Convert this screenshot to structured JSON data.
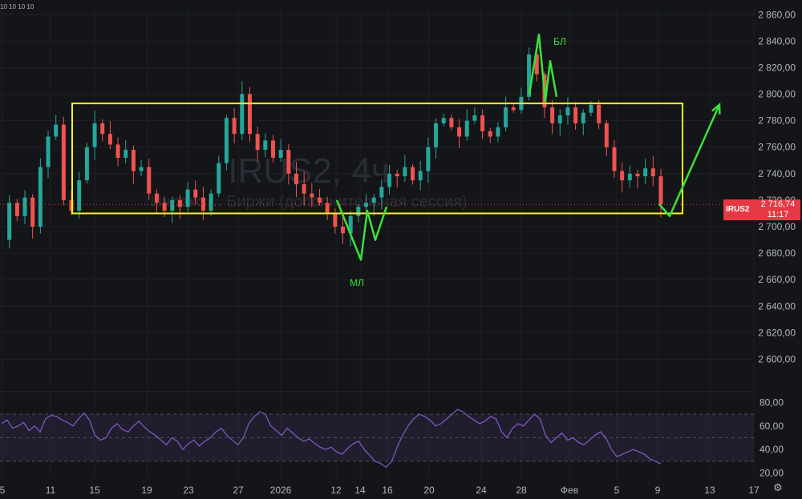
{
  "top_indicator_text": "10 10 10 10",
  "watermark": {
    "symbol": "IRUS2, 4ч",
    "description": "Индекс ... Биржи (дополнительная сессия)"
  },
  "price_label": {
    "symbol": "IRUS2",
    "price": "2 716,74",
    "countdown": "11:17",
    "color": "#e53945"
  },
  "annotations": {
    "top": "БЛ",
    "bottom": "МЛ"
  },
  "colors": {
    "background": "#141518",
    "up": "#26a69a",
    "down": "#ef5350",
    "box": "#f4f41c",
    "annotation": "#39e23a",
    "rsi": "#7e57c2",
    "last_price_line": "#e53945"
  },
  "chart_data": [
    {
      "type": "candlestick",
      "symbol": "IRUS2",
      "timeframe": "4ч",
      "y_axis_ticks": [
        "2 860,00",
        "2 840,00",
        "2 820,00",
        "2 800,00",
        "2 780,00",
        "2 760,00",
        "2 740,00",
        "2 720,00",
        "2 700,00",
        "2 680,00",
        "2 660,00",
        "2 640,00",
        "2 620,00",
        "2 600,00"
      ],
      "ylim": [
        2590,
        2865
      ],
      "x_axis_ticks": [
        "5",
        "11",
        "15",
        "19",
        "23",
        "27",
        "2026",
        "12",
        "14",
        "16",
        "20",
        "24",
        "28",
        "Фев",
        "5",
        "9",
        "13",
        "17"
      ],
      "last_price": 2716.74,
      "close_path": [
        2690,
        2718,
        2708,
        2722,
        2700,
        2745,
        2768,
        2777,
        2720,
        2712,
        2735,
        2760,
        2778,
        2770,
        2762,
        2752,
        2758,
        2742,
        2745,
        2725,
        2718,
        2712,
        2720,
        2715,
        2728,
        2722,
        2712,
        2725,
        2748,
        2782,
        2770,
        2800,
        2770,
        2758,
        2765,
        2752,
        2758,
        2740,
        2732,
        2725,
        2722,
        2718,
        2710,
        2700,
        2695,
        2708,
        2715,
        2718,
        2722,
        2730,
        2740,
        2738,
        2745,
        2735,
        2742,
        2760,
        2778,
        2782,
        2775,
        2768,
        2780,
        2784,
        2772,
        2768,
        2775,
        2790,
        2788,
        2798,
        2830,
        2815,
        2790,
        2778,
        2784,
        2790,
        2778,
        2786,
        2792,
        2778,
        2760,
        2742,
        2735,
        2740,
        2738,
        2744,
        2738,
        2716.74
      ],
      "range_box": {
        "top": 2793,
        "bottom": 2710
      },
      "projection_lines": [
        {
          "name": "bottom-pattern",
          "points": [
            [
              420,
              2720
            ],
            [
              450,
              2675
            ],
            [
              458,
              2712
            ],
            [
              468,
              2690
            ],
            [
              482,
              2715
            ]
          ]
        },
        {
          "name": "top-pattern",
          "points": [
            [
              660,
              2800
            ],
            [
              672,
              2845
            ],
            [
              680,
              2795
            ],
            [
              686,
              2825
            ],
            [
              694,
              2798
            ]
          ]
        },
        {
          "name": "forecast-arrow",
          "points": [
            [
              822,
              2717
            ],
            [
              835,
              2708
            ],
            [
              897,
              2792
            ]
          ]
        }
      ]
    },
    {
      "type": "line",
      "name": "RSI",
      "y_axis_ticks": [
        "80,00",
        "60,00",
        "40,00",
        "20,00"
      ],
      "ylim": [
        15,
        85
      ],
      "band": [
        30,
        70
      ],
      "values": [
        62,
        65,
        58,
        60,
        63,
        56,
        60,
        55,
        66,
        69,
        68,
        65,
        63,
        60,
        66,
        71,
        65,
        52,
        48,
        50,
        58,
        62,
        57,
        55,
        60,
        64,
        59,
        55,
        52,
        48,
        44,
        50,
        47,
        40,
        45,
        48,
        43,
        47,
        50,
        55,
        58,
        52,
        48,
        44,
        50,
        62,
        68,
        72,
        70,
        60,
        56,
        52,
        58,
        54,
        50,
        47,
        49,
        45,
        42,
        40,
        42,
        38,
        36,
        41,
        45,
        47,
        40,
        35,
        30,
        28,
        25,
        30,
        42,
        52,
        60,
        66,
        70,
        68,
        65,
        60,
        62,
        66,
        70,
        74,
        72,
        68,
        65,
        62,
        64,
        68,
        66,
        55,
        50,
        58,
        62,
        60,
        65,
        70,
        66,
        52,
        46,
        50,
        54,
        48,
        50,
        46,
        44,
        48,
        52,
        55,
        50,
        40,
        34,
        36,
        38,
        40,
        38,
        36,
        32,
        30,
        28
      ]
    }
  ]
}
